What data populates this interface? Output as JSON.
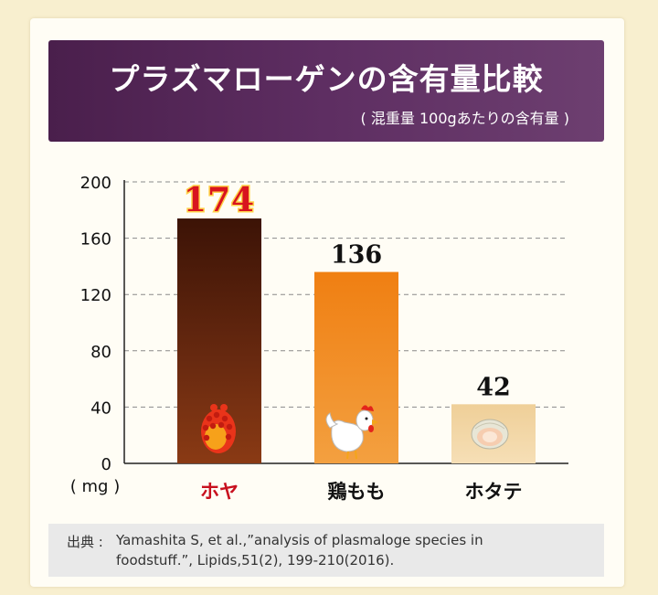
{
  "header": {
    "title": "プラズマローゲンの含有量比較",
    "subtitle": "( 混重量 100gあたりの含有量 )"
  },
  "chart_data": {
    "type": "bar",
    "categories": [
      "ホヤ",
      "鶏もも",
      "ホタテ"
    ],
    "values": [
      174,
      136,
      42
    ],
    "value_labels": [
      "174",
      "136",
      "42"
    ],
    "yticks": [
      "0",
      "40",
      "80",
      "120",
      "160",
      "200"
    ],
    "ylim": [
      0,
      200
    ],
    "unit": "( mg )",
    "grid": true,
    "bar_colors": [
      "#5a1e0c",
      "#f08a1e",
      "#f2d4a2"
    ],
    "label_colors": [
      "#c8101e",
      "#111111",
      "#111111"
    ],
    "icons": [
      "sea-squirt-icon",
      "chicken-icon",
      "scallop-icon"
    ]
  },
  "source": {
    "label": "出典 :",
    "line1": "Yamashita S, et al.,”analysis of plasmaloge species in",
    "line2": "foodstuff.”, Lipids,51(2), 199-210(2016)."
  }
}
